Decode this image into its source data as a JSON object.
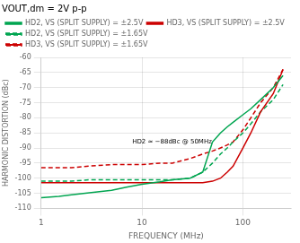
{
  "chart_data": {
    "type": "line",
    "title": "VOUT,dm = 2V p-p",
    "x_label": "FREQUENCY (MHz)",
    "y_label": "HARMONIC DISTORTION (dBc)",
    "log": "x",
    "grid": true,
    "legend": "upper left",
    "xlim": [
      1,
      300
    ],
    "xticks": [
      1,
      10,
      100
    ],
    "ylim": [
      -110,
      -60
    ],
    "yticks": [
      -110,
      -105,
      -100,
      -95,
      -90,
      -85,
      -80,
      -75,
      -70,
      -65,
      -60
    ],
    "x": [
      1,
      1.5,
      2,
      3,
      5,
      7,
      10,
      15,
      20,
      30,
      40,
      50,
      60,
      70,
      80,
      100,
      120,
      150,
      200,
      250
    ],
    "series": [
      {
        "name": "HD2, VS (SPLIT SUPPLY) = ±2.5V",
        "color": "#00a550",
        "line_style": "solid",
        "values": [
          -106.5,
          -106,
          -105.5,
          -104.8,
          -104,
          -103,
          -102,
          -101.2,
          -100.5,
          -100,
          -98,
          -88,
          -85,
          -83,
          -81.5,
          -79,
          -77,
          -74,
          -70,
          -66
        ]
      },
      {
        "name": "HD3, VS (SPLIT SUPPLY) = ±2.5V",
        "color": "#cc0000",
        "line_style": "solid",
        "values": [
          -101.5,
          -101.5,
          -101.5,
          -101.5,
          -101.5,
          -101.5,
          -101.5,
          -101.5,
          -101.5,
          -101.5,
          -101.5,
          -101,
          -100,
          -98,
          -96,
          -90,
          -85,
          -78,
          -72,
          -64
        ]
      },
      {
        "name": "HD2, VS (SPLIT SUPPLY) = ±1.65V",
        "color": "#00a550",
        "line_style": "dashed",
        "values": [
          -101,
          -101,
          -101,
          -100.5,
          -100.5,
          -100.5,
          -100.5,
          -100.5,
          -100.5,
          -100,
          -98,
          -95,
          -92,
          -90,
          -88,
          -85,
          -82,
          -78,
          -74,
          -69
        ]
      },
      {
        "name": "HD3, VS (SPLIT SUPPLY) = ±1.65V",
        "color": "#cc0000",
        "line_style": "dashed",
        "values": [
          -96.5,
          -96.5,
          -96.5,
          -96,
          -95.5,
          -95.5,
          -95.5,
          -95,
          -95,
          -93.5,
          -92,
          -91,
          -90,
          -89,
          -88,
          -84,
          -80,
          -75,
          -70,
          -64
        ]
      }
    ],
    "annotations": [
      {
        "text": "HD2 ≈ −88dBc @ 50MHz",
        "x": 8,
        "y": -88,
        "arrow_x": 50,
        "arrow_y": -88
      }
    ]
  }
}
